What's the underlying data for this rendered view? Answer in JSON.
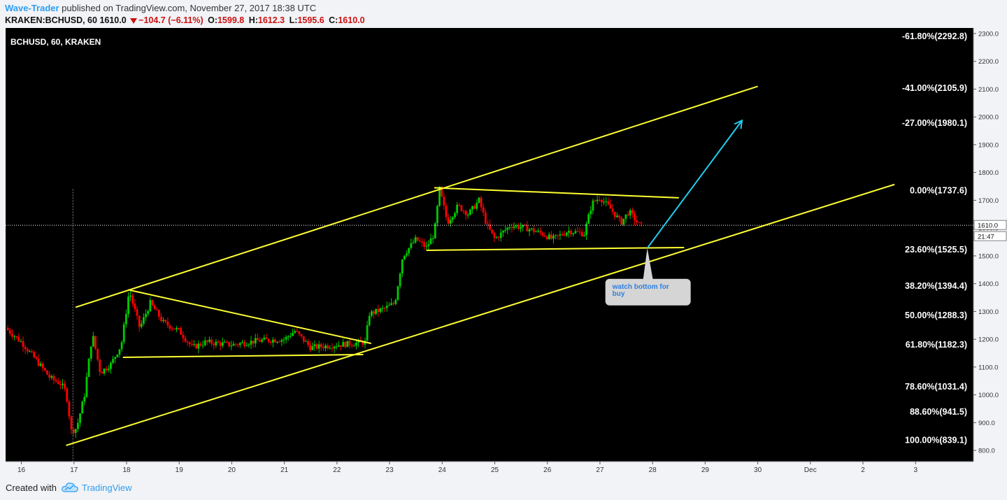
{
  "header": {
    "author": "Wave-Trader",
    "published": " published on TradingView.com, November 27, 2017 18:38 UTC",
    "symbol": "KRAKEN:BCHUSD, 60",
    "last": "1610.0",
    "change": "−104.7 (−6.11%)",
    "open_label": "O:",
    "open": "1599.8",
    "high_label": "H:",
    "high": "1612.3",
    "low_label": "L:",
    "low": "1595.6",
    "close_label": "C:",
    "close": "1610.0"
  },
  "footer": {
    "created_with": "Created with",
    "brand": "TradingView"
  },
  "colors": {
    "background": "#000000",
    "axis_bg": "#f1f3f6",
    "up": "#00cc00",
    "down": "#ff0000",
    "trendline": "#ffff33",
    "arrow": "#22ccee",
    "fib_text": "#ffffff"
  },
  "chart_data": {
    "type": "candlestick",
    "title": "BCHUSD, 60, KRAKEN",
    "ylim": [
      760,
      2320
    ],
    "y_ticks": [
      800,
      900,
      1000,
      1100,
      1200,
      1300,
      1400,
      1500,
      1600,
      1700,
      1800,
      1900,
      2000,
      2100,
      2200,
      2300
    ],
    "x_ticks": [
      "16",
      "17",
      "18",
      "19",
      "20",
      "21",
      "22",
      "23",
      "24",
      "25",
      "26",
      "27",
      "28",
      "29",
      "30",
      "Dec",
      "2",
      "3"
    ],
    "x_range_days": [
      15.7,
      34.1
    ],
    "current_price": "1610.0",
    "countdown": "21:47",
    "fib_levels": [
      {
        "label": "-61.80%(2292.8)",
        "value": 2292.8
      },
      {
        "label": "-41.00%(2105.9)",
        "value": 2105.9
      },
      {
        "label": "-27.00%(1980.1)",
        "value": 1980.1
      },
      {
        "label": "0.00%(1737.6)",
        "value": 1737.6
      },
      {
        "label": "23.60%(1525.5)",
        "value": 1525.5
      },
      {
        "label": "38.20%(1394.4)",
        "value": 1394.4
      },
      {
        "label": "50.00%(1288.3)",
        "value": 1288.3
      },
      {
        "label": "61.80%(1182.3)",
        "value": 1182.3
      },
      {
        "label": "78.60%(1031.4)",
        "value": 1031.4
      },
      {
        "label": "88.60%(941.5)",
        "value": 941.5
      },
      {
        "label": "100.00%(839.1)",
        "value": 839.1
      }
    ],
    "price_path": [
      [
        15.7,
        1240
      ],
      [
        16.0,
        1190
      ],
      [
        16.3,
        1120
      ],
      [
        16.55,
        1060
      ],
      [
        16.75,
        1040
      ],
      [
        16.85,
        1010
      ],
      [
        16.95,
        870
      ],
      [
        17.05,
        880
      ],
      [
        17.2,
        1000
      ],
      [
        17.35,
        1220
      ],
      [
        17.5,
        1080
      ],
      [
        17.7,
        1110
      ],
      [
        17.9,
        1180
      ],
      [
        18.05,
        1375
      ],
      [
        18.25,
        1240
      ],
      [
        18.45,
        1330
      ],
      [
        18.7,
        1260
      ],
      [
        19.0,
        1230
      ],
      [
        19.25,
        1170
      ],
      [
        19.5,
        1190
      ],
      [
        20.0,
        1180
      ],
      [
        20.5,
        1195
      ],
      [
        21.0,
        1200
      ],
      [
        21.2,
        1230
      ],
      [
        21.5,
        1170
      ],
      [
        22.0,
        1180
      ],
      [
        22.3,
        1185
      ],
      [
        22.55,
        1190
      ],
      [
        22.6,
        1290
      ],
      [
        22.9,
        1310
      ],
      [
        23.1,
        1330
      ],
      [
        23.25,
        1500
      ],
      [
        23.5,
        1560
      ],
      [
        23.7,
        1530
      ],
      [
        23.85,
        1580
      ],
      [
        23.95,
        1740
      ],
      [
        24.1,
        1620
      ],
      [
        24.3,
        1680
      ],
      [
        24.5,
        1650
      ],
      [
        24.7,
        1700
      ],
      [
        24.85,
        1610
      ],
      [
        25.0,
        1560
      ],
      [
        25.3,
        1610
      ],
      [
        25.6,
        1600
      ],
      [
        25.9,
        1580
      ],
      [
        26.1,
        1560
      ],
      [
        26.4,
        1590
      ],
      [
        26.7,
        1580
      ],
      [
        26.85,
        1690
      ],
      [
        27.0,
        1710
      ],
      [
        27.2,
        1670
      ],
      [
        27.4,
        1620
      ],
      [
        27.55,
        1660
      ],
      [
        27.75,
        1610
      ]
    ],
    "trendlines": [
      {
        "name": "channel upper",
        "points": [
          [
            17.03,
            1315
          ],
          [
            30.0,
            2110
          ]
        ]
      },
      {
        "name": "channel lower",
        "points": [
          [
            16.85,
            818
          ],
          [
            32.6,
            1757
          ]
        ]
      },
      {
        "name": "triangle top",
        "points": [
          [
            18.03,
            1378
          ],
          [
            22.65,
            1185
          ]
        ]
      },
      {
        "name": "triangle base",
        "points": [
          [
            17.93,
            1135
          ],
          [
            22.5,
            1145
          ]
        ]
      },
      {
        "name": "pennant top",
        "points": [
          [
            23.85,
            1745
          ],
          [
            28.5,
            1709
          ]
        ]
      },
      {
        "name": "pennant base",
        "points": [
          [
            23.7,
            1520
          ],
          [
            28.6,
            1530
          ]
        ]
      }
    ],
    "projection_arrow": {
      "from": [
        27.9,
        1528
      ],
      "to": [
        29.7,
        1987
      ]
    },
    "annotation": {
      "text": "watch bottom for buy",
      "anchor": [
        27.9,
        1528
      ]
    }
  }
}
